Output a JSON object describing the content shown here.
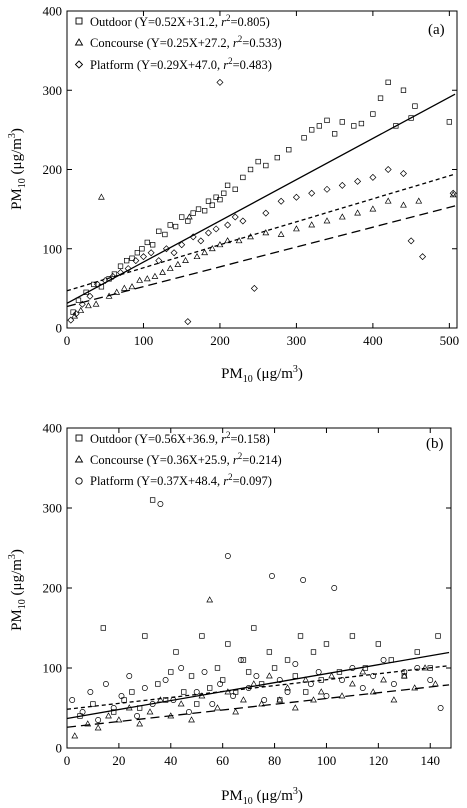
{
  "chart_data": [
    {
      "type": "scatter",
      "panel_label": "(a)",
      "xlabel": "PM10 (μg/m3)",
      "ylabel": "PM10 (μg/m3)",
      "xlim": [
        0,
        510
      ],
      "ylim": [
        0,
        400
      ],
      "xticks": [
        "0",
        "100",
        "200",
        "300",
        "400",
        "500"
      ],
      "yticks": [
        "0",
        "100",
        "200",
        "300",
        "400"
      ],
      "legend_position": "top-left",
      "grid": false,
      "series": [
        {
          "name": "Outdoor",
          "marker": "square",
          "equation": "(Y=0.52X+31.2, r2=0.805)",
          "eq_main": "(Y=0.52X+31.2, ",
          "eq_tail": "=0.805)",
          "slope": 0.52,
          "intercept": 31.2,
          "r2": 0.805,
          "line_style": "solid",
          "points": [
            [
              8,
              20
            ],
            [
              15,
              35
            ],
            [
              25,
              45
            ],
            [
              35,
              55
            ],
            [
              45,
              52
            ],
            [
              55,
              62
            ],
            [
              62,
              68
            ],
            [
              70,
              78
            ],
            [
              78,
              85
            ],
            [
              85,
              88
            ],
            [
              92,
              95
            ],
            [
              98,
              100
            ],
            [
              105,
              108
            ],
            [
              112,
              105
            ],
            [
              120,
              122
            ],
            [
              128,
              118
            ],
            [
              135,
              130
            ],
            [
              142,
              128
            ],
            [
              150,
              140
            ],
            [
              158,
              135
            ],
            [
              165,
              145
            ],
            [
              172,
              150
            ],
            [
              180,
              148
            ],
            [
              185,
              160
            ],
            [
              190,
              155
            ],
            [
              195,
              165
            ],
            [
              200,
              162
            ],
            [
              205,
              170
            ],
            [
              210,
              180
            ],
            [
              220,
              175
            ],
            [
              230,
              190
            ],
            [
              240,
              200
            ],
            [
              250,
              210
            ],
            [
              260,
              205
            ],
            [
              275,
              215
            ],
            [
              290,
              225
            ],
            [
              310,
              240
            ],
            [
              320,
              250
            ],
            [
              330,
              255
            ],
            [
              340,
              262
            ],
            [
              350,
              245
            ],
            [
              360,
              260
            ],
            [
              375,
              255
            ],
            [
              385,
              258
            ],
            [
              400,
              270
            ],
            [
              410,
              290
            ],
            [
              420,
              310
            ],
            [
              430,
              255
            ],
            [
              440,
              300
            ],
            [
              450,
              265
            ],
            [
              455,
              280
            ],
            [
              500,
              260
            ]
          ]
        },
        {
          "name": "Concourse",
          "marker": "triangle",
          "equation": "(Y=0.25X+27.2, r2=0.533)",
          "eq_main": "(Y=0.25X+27.2, ",
          "eq_tail": "=0.533)",
          "slope": 0.25,
          "intercept": 27.2,
          "r2": 0.533,
          "line_style": "long-dash",
          "points": [
            [
              10,
              15
            ],
            [
              18,
              22
            ],
            [
              28,
              28
            ],
            [
              38,
              30
            ],
            [
              45,
              165
            ],
            [
              55,
              40
            ],
            [
              65,
              45
            ],
            [
              75,
              50
            ],
            [
              85,
              52
            ],
            [
              95,
              60
            ],
            [
              105,
              62
            ],
            [
              115,
              65
            ],
            [
              125,
              70
            ],
            [
              135,
              75
            ],
            [
              145,
              80
            ],
            [
              155,
              85
            ],
            [
              160,
              140
            ],
            [
              170,
              90
            ],
            [
              180,
              95
            ],
            [
              190,
              100
            ],
            [
              200,
              105
            ],
            [
              210,
              110
            ],
            [
              225,
              110
            ],
            [
              240,
              115
            ],
            [
              260,
              120
            ],
            [
              280,
              118
            ],
            [
              300,
              125
            ],
            [
              320,
              130
            ],
            [
              340,
              135
            ],
            [
              360,
              140
            ],
            [
              380,
              145
            ],
            [
              400,
              150
            ],
            [
              420,
              160
            ],
            [
              440,
              155
            ],
            [
              460,
              160
            ],
            [
              505,
              168
            ]
          ]
        },
        {
          "name": "Platform",
          "marker": "circle",
          "equation": "(Y=0.29X+47.0, r2=0.483)",
          "eq_main": "(Y=0.29X+47.0, ",
          "eq_tail": "=0.483)",
          "slope": 0.29,
          "intercept": 47.0,
          "r2": 0.483,
          "line_style": "short-dash",
          "points": [
            [
              5,
              10
            ],
            [
              12,
              18
            ],
            [
              20,
              30
            ],
            [
              30,
              40
            ],
            [
              40,
              55
            ],
            [
              50,
              60
            ],
            [
              60,
              65
            ],
            [
              70,
              70
            ],
            [
              80,
              75
            ],
            [
              90,
              85
            ],
            [
              100,
              90
            ],
            [
              110,
              95
            ],
            [
              120,
              85
            ],
            [
              130,
              100
            ],
            [
              140,
              95
            ],
            [
              150,
              105
            ],
            [
              158,
              8
            ],
            [
              165,
              115
            ],
            [
              175,
              110
            ],
            [
              185,
              120
            ],
            [
              195,
              125
            ],
            [
              200,
              310
            ],
            [
              210,
              130
            ],
            [
              220,
              140
            ],
            [
              230,
              135
            ],
            [
              245,
              50
            ],
            [
              260,
              145
            ],
            [
              280,
              160
            ],
            [
              300,
              165
            ],
            [
              320,
              170
            ],
            [
              340,
              175
            ],
            [
              360,
              180
            ],
            [
              380,
              185
            ],
            [
              400,
              190
            ],
            [
              420,
              200
            ],
            [
              440,
              195
            ],
            [
              450,
              110
            ],
            [
              465,
              90
            ],
            [
              505,
              170
            ]
          ]
        }
      ]
    },
    {
      "type": "scatter",
      "panel_label": "(b)",
      "xlabel": "PM10 (μg/m3)",
      "ylabel": "PM10 (μg/m3)",
      "xlim": [
        0,
        148
      ],
      "ylim": [
        0,
        400
      ],
      "xticks": [
        "0",
        "20",
        "40",
        "60",
        "80",
        "100",
        "120",
        "140"
      ],
      "yticks": [
        "0",
        "100",
        "200",
        "300",
        "400"
      ],
      "legend_position": "top-left",
      "grid": false,
      "series": [
        {
          "name": "Outdoor",
          "marker": "square",
          "equation": "(Y=0.56X+36.9, r2=0.158)",
          "eq_main": "(Y=0.56X+36.9, ",
          "eq_tail": "=0.158)",
          "slope": 0.56,
          "intercept": 36.9,
          "r2": 0.158,
          "line_style": "solid",
          "points": [
            [
              5,
              40
            ],
            [
              10,
              55
            ],
            [
              14,
              150
            ],
            [
              18,
              45
            ],
            [
              22,
              60
            ],
            [
              25,
              70
            ],
            [
              28,
              50
            ],
            [
              30,
              140
            ],
            [
              33,
              310
            ],
            [
              35,
              80
            ],
            [
              38,
              60
            ],
            [
              40,
              95
            ],
            [
              42,
              120
            ],
            [
              45,
              70
            ],
            [
              48,
              90
            ],
            [
              50,
              55
            ],
            [
              52,
              140
            ],
            [
              55,
              75
            ],
            [
              58,
              100
            ],
            [
              60,
              85
            ],
            [
              62,
              130
            ],
            [
              65,
              70
            ],
            [
              68,
              110
            ],
            [
              70,
              95
            ],
            [
              72,
              150
            ],
            [
              75,
              80
            ],
            [
              78,
              120
            ],
            [
              80,
              100
            ],
            [
              82,
              60
            ],
            [
              85,
              110
            ],
            [
              88,
              90
            ],
            [
              90,
              140
            ],
            [
              92,
              70
            ],
            [
              95,
              120
            ],
            [
              98,
              85
            ],
            [
              100,
              130
            ],
            [
              105,
              95
            ],
            [
              110,
              140
            ],
            [
              115,
              100
            ],
            [
              120,
              130
            ],
            [
              125,
              110
            ],
            [
              130,
              90
            ],
            [
              135,
              120
            ],
            [
              140,
              100
            ],
            [
              143,
              140
            ]
          ]
        },
        {
          "name": "Concourse",
          "marker": "triangle",
          "equation": "(Y=0.36X+25.9, r2=0.214)",
          "eq_main": "(Y=0.36X+25.9, ",
          "eq_tail": "=0.214)",
          "slope": 0.36,
          "intercept": 25.9,
          "r2": 0.214,
          "line_style": "long-dash",
          "points": [
            [
              3,
              15
            ],
            [
              8,
              30
            ],
            [
              12,
              25
            ],
            [
              16,
              40
            ],
            [
              20,
              35
            ],
            [
              24,
              50
            ],
            [
              28,
              30
            ],
            [
              32,
              45
            ],
            [
              36,
              60
            ],
            [
              40,
              40
            ],
            [
              44,
              55
            ],
            [
              48,
              35
            ],
            [
              52,
              65
            ],
            [
              55,
              185
            ],
            [
              58,
              50
            ],
            [
              62,
              70
            ],
            [
              65,
              45
            ],
            [
              68,
              60
            ],
            [
              72,
              80
            ],
            [
              75,
              55
            ],
            [
              78,
              90
            ],
            [
              82,
              60
            ],
            [
              85,
              75
            ],
            [
              88,
              50
            ],
            [
              92,
              85
            ],
            [
              95,
              60
            ],
            [
              98,
              70
            ],
            [
              102,
              90
            ],
            [
              106,
              65
            ],
            [
              110,
              80
            ],
            [
              114,
              95
            ],
            [
              118,
              70
            ],
            [
              122,
              85
            ],
            [
              126,
              60
            ],
            [
              130,
              90
            ],
            [
              134,
              75
            ],
            [
              138,
              100
            ],
            [
              142,
              80
            ]
          ]
        },
        {
          "name": "Platform",
          "marker": "circle",
          "equation": "(Y=0.37X+48.4, r2=0.097)",
          "eq_main": "(Y=0.37X+48.4, ",
          "eq_tail": "=0.097)",
          "slope": 0.37,
          "intercept": 48.4,
          "r2": 0.097,
          "line_style": "short-dash",
          "points": [
            [
              2,
              60
            ],
            [
              6,
              45
            ],
            [
              9,
              70
            ],
            [
              12,
              35
            ],
            [
              15,
              80
            ],
            [
              18,
              50
            ],
            [
              21,
              65
            ],
            [
              24,
              90
            ],
            [
              27,
              40
            ],
            [
              30,
              75
            ],
            [
              33,
              55
            ],
            [
              36,
              305
            ],
            [
              38,
              85
            ],
            [
              41,
              60
            ],
            [
              44,
              100
            ],
            [
              47,
              45
            ],
            [
              50,
              70
            ],
            [
              53,
              95
            ],
            [
              56,
              55
            ],
            [
              59,
              80
            ],
            [
              62,
              240
            ],
            [
              64,
              65
            ],
            [
              67,
              110
            ],
            [
              70,
              75
            ],
            [
              73,
              90
            ],
            [
              76,
              60
            ],
            [
              79,
              215
            ],
            [
              82,
              85
            ],
            [
              85,
              70
            ],
            [
              88,
              105
            ],
            [
              91,
              210
            ],
            [
              94,
              80
            ],
            [
              97,
              95
            ],
            [
              100,
              65
            ],
            [
              103,
              200
            ],
            [
              106,
              85
            ],
            [
              110,
              100
            ],
            [
              114,
              75
            ],
            [
              118,
              90
            ],
            [
              122,
              110
            ],
            [
              126,
              80
            ],
            [
              130,
              95
            ],
            [
              135,
              100
            ],
            [
              140,
              85
            ],
            [
              144,
              50
            ]
          ]
        }
      ]
    }
  ]
}
